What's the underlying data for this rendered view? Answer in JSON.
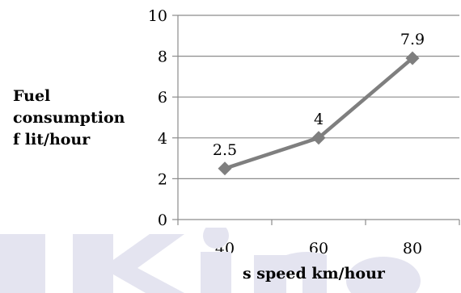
{
  "chart_data": {
    "type": "line",
    "categories": [
      "40",
      "60",
      "80"
    ],
    "x": [
      40,
      60,
      80
    ],
    "values": [
      2.5,
      4,
      7.9
    ],
    "data_labels": [
      "2.5",
      "4",
      "7.9"
    ],
    "series": [
      {
        "values": [
          2.5,
          4,
          7.9
        ]
      }
    ],
    "ylabel_lines": [
      "Fuel",
      "consumption",
      "f lit/hour"
    ],
    "xlabel": "s speed km/hour",
    "ylim": [
      0,
      10
    ],
    "yticks": [
      0,
      2,
      4,
      6,
      8,
      10
    ],
    "grid": true,
    "line_color": "#7f7f7f",
    "grid_color": "#8c8c8c",
    "marker": "diamond"
  }
}
